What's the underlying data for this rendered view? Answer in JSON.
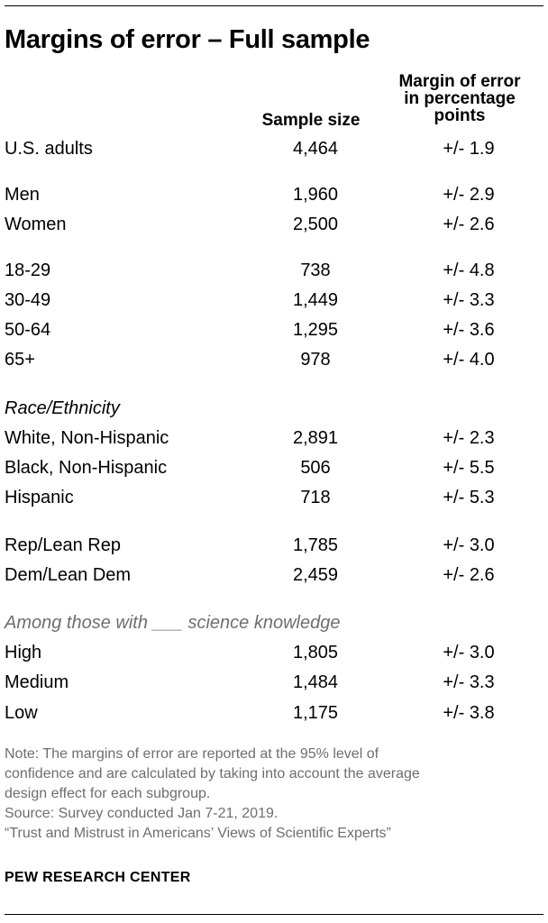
{
  "title": "Margins of error – Full sample",
  "columns": {
    "sample_size": "Sample size",
    "moe_lines": [
      "Margin of error",
      "in percentage",
      "points"
    ]
  },
  "chart_data": {
    "type": "table",
    "title": "Margins of error – Full sample",
    "columns": [
      "Sample size",
      "Margin of error in percentage points"
    ],
    "rows": [
      {
        "label": "U.S. adults",
        "sample_size": "4,464",
        "moe": "+/- 1.9"
      },
      {
        "label": "Men",
        "sample_size": "1,960",
        "moe": "+/- 2.9"
      },
      {
        "label": "Women",
        "sample_size": "2,500",
        "moe": "+/- 2.6"
      },
      {
        "label": "18-29",
        "sample_size": "738",
        "moe": "+/- 4.8"
      },
      {
        "label": "30-49",
        "sample_size": "1,449",
        "moe": "+/- 3.3"
      },
      {
        "label": "50-64",
        "sample_size": "1,295",
        "moe": "+/- 3.6"
      },
      {
        "label": "65+",
        "sample_size": "978",
        "moe": "+/- 4.0"
      },
      {
        "label": "White, Non-Hispanic",
        "sample_size": "2,891",
        "moe": "+/- 2.3"
      },
      {
        "label": "Black, Non-Hispanic",
        "sample_size": "506",
        "moe": "+/- 5.5"
      },
      {
        "label": "Hispanic",
        "sample_size": "718",
        "moe": "+/- 5.3"
      },
      {
        "label": "Rep/Lean Rep",
        "sample_size": "1,785",
        "moe": "+/- 3.0"
      },
      {
        "label": "Dem/Lean Dem",
        "sample_size": "2,459",
        "moe": "+/- 2.6"
      },
      {
        "label": "High",
        "sample_size": "1,805",
        "moe": "+/- 3.0"
      },
      {
        "label": "Medium",
        "sample_size": "1,484",
        "moe": "+/- 3.3"
      },
      {
        "label": "Low",
        "sample_size": "1,175",
        "moe": "+/- 3.8"
      }
    ],
    "sections": {
      "race": "Race/Ethnicity",
      "knowledge": "Among those with ___ science knowledge"
    }
  },
  "notes": [
    "Note: The margins of error are reported at the 95% level of",
    "confidence and are calculated by taking into account the average",
    "design effect for each subgroup.",
    "Source: Survey conducted Jan 7-21, 2019.",
    "“Trust and Mistrust in Americans’ Views of Scientific Experts”"
  ],
  "brand": "PEW RESEARCH CENTER",
  "colors": {
    "text": "#000000",
    "note_text": "#6e6e6e",
    "rule": "#000000"
  }
}
